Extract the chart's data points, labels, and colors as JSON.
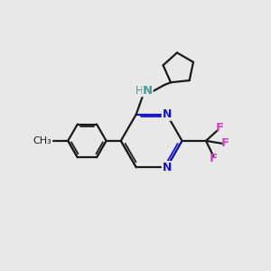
{
  "background_color": "#e8e8e8",
  "bond_color": "#1a1a1a",
  "nitrogen_color": "#1414cc",
  "fluorine_color": "#cc44bb",
  "nh_color": "#4a9a9a",
  "figsize": [
    3.0,
    3.0
  ],
  "dpi": 100,
  "xlim": [
    0,
    10
  ],
  "ylim": [
    0,
    10
  ]
}
